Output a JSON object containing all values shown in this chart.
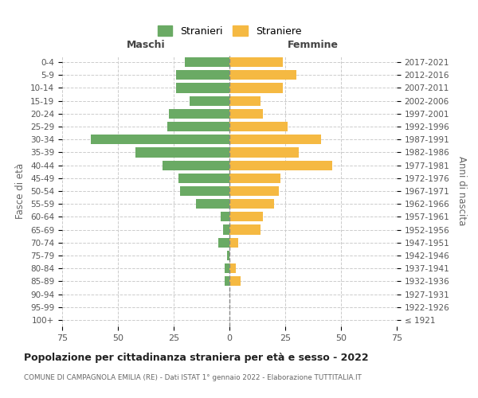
{
  "age_groups": [
    "100+",
    "95-99",
    "90-94",
    "85-89",
    "80-84",
    "75-79",
    "70-74",
    "65-69",
    "60-64",
    "55-59",
    "50-54",
    "45-49",
    "40-44",
    "35-39",
    "30-34",
    "25-29",
    "20-24",
    "15-19",
    "10-14",
    "5-9",
    "0-4"
  ],
  "birth_years": [
    "≤ 1921",
    "1922-1926",
    "1927-1931",
    "1932-1936",
    "1937-1941",
    "1942-1946",
    "1947-1951",
    "1952-1956",
    "1957-1961",
    "1962-1966",
    "1967-1971",
    "1972-1976",
    "1977-1981",
    "1982-1986",
    "1987-1991",
    "1992-1996",
    "1997-2001",
    "2002-2006",
    "2007-2011",
    "2012-2016",
    "2017-2021"
  ],
  "maschi": [
    0,
    0,
    0,
    2,
    2,
    1,
    5,
    3,
    4,
    15,
    22,
    23,
    30,
    42,
    62,
    28,
    27,
    18,
    24,
    24,
    20
  ],
  "femmine": [
    0,
    0,
    0,
    5,
    3,
    0,
    4,
    14,
    15,
    20,
    22,
    23,
    46,
    31,
    41,
    26,
    15,
    14,
    24,
    30,
    24
  ],
  "male_color": "#6aaa64",
  "female_color": "#f5b942",
  "background_color": "#ffffff",
  "grid_color": "#cccccc",
  "title": "Popolazione per cittadinanza straniera per età e sesso - 2022",
  "subtitle": "COMUNE DI CAMPAGNOLA EMILIA (RE) - Dati ISTAT 1° gennaio 2022 - Elaborazione TUTTITALIA.IT",
  "xlabel_left": "Maschi",
  "xlabel_right": "Femmine",
  "ylabel_left": "Fasce di età",
  "ylabel_right": "Anni di nascita",
  "legend_male": "Stranieri",
  "legend_female": "Straniere",
  "xlim": 75,
  "fig_width": 6.0,
  "fig_height": 5.0,
  "dpi": 100
}
